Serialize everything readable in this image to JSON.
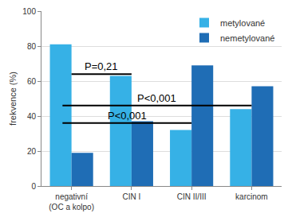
{
  "chart_data": {
    "type": "bar",
    "categories": [
      "negativní\n(OC a kolpo)",
      "CIN I",
      "CIN II/III",
      "karcinom"
    ],
    "series": [
      {
        "name": "metylované",
        "color": "#36b1e6",
        "values": [
          81,
          63,
          32,
          44
        ]
      },
      {
        "name": "nemetylované",
        "color": "#1f6db5",
        "values": [
          19,
          37,
          69,
          57
        ]
      }
    ],
    "y_label": "frekvence (%)",
    "ylim": [
      0,
      100
    ],
    "yticks": [
      0,
      20,
      40,
      60,
      80,
      100
    ],
    "grid": true,
    "legend": "top right",
    "annotations": [
      {
        "text": "P=0,21",
        "y": 64,
        "from": "negativní\n(OC a kolpo)",
        "to": "CIN I"
      },
      {
        "text": "P<0,001",
        "y": 46,
        "from": "negativní\n(OC a kolpo)",
        "to": "karcinom"
      },
      {
        "text": "P<0,001",
        "y": 36,
        "from": "negativní\n(OC a kolpo)",
        "to": "CIN II/III"
      }
    ]
  }
}
